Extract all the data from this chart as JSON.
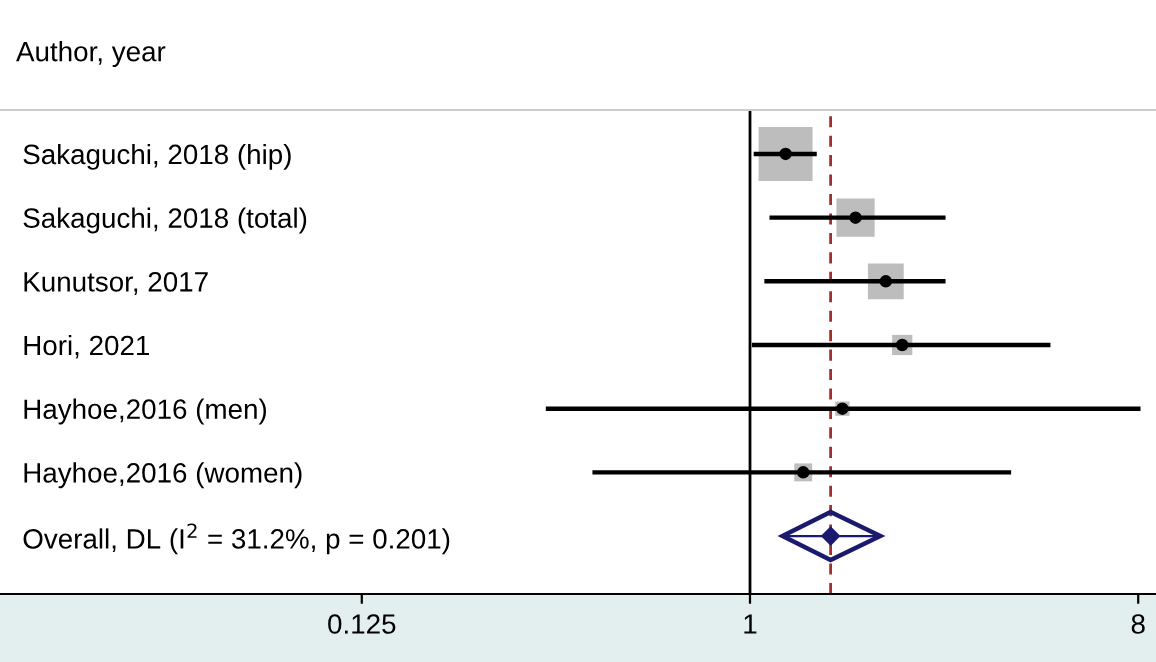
{
  "chart_data": {
    "type": "scatter",
    "orientation": "horizontal",
    "title": "Author, year",
    "categories": [
      "Sakaguchi, 2018 (hip)",
      "Sakaguchi, 2018 (total)",
      "Kunutsor, 2017",
      "Hori, 2021",
      "Hayhoe,2016 (men)",
      "Hayhoe,2016 (women)",
      "Overall, DL (I$^{2}$ = 31.2%, p = 0.201)"
    ],
    "series": [
      {
        "marker": "square",
        "color": "#bdbdbd",
        "values": [
          1.21,
          1.76,
          2.07,
          2.26,
          1.64,
          1.33,
          null
        ],
        "sizes": [
          1,
          0.5,
          0.44,
          0.14,
          0.07,
          0.11,
          null
        ],
        "errors": [
          [
            1.02,
            1.43
          ],
          [
            1.11,
            2.85
          ],
          [
            1.08,
            2.85
          ],
          [
            1.01,
            5.0
          ],
          [
            0.335,
            8.1
          ],
          [
            0.43,
            4.05
          ],
          null
        ]
      },
      {
        "marker": "diamond",
        "color": "#1a1a6e",
        "values": [
          null,
          null,
          null,
          null,
          null,
          null,
          1.54
        ],
        "errors": [
          null,
          null,
          null,
          null,
          null,
          null,
          [
            1.19,
            2.01
          ]
        ]
      }
    ],
    "log": "x",
    "xlim": [
      0.018,
      8.8
    ],
    "xticks": [
      0.125,
      1,
      8
    ],
    "ref_lines": [
      {
        "axis": "x",
        "value": 1,
        "color": "#000000",
        "line_style": "solid"
      },
      {
        "axis": "x",
        "value": 1.54,
        "color": "#a03030",
        "line_style": "dashed"
      }
    ],
    "grid": false,
    "legend": false
  }
}
